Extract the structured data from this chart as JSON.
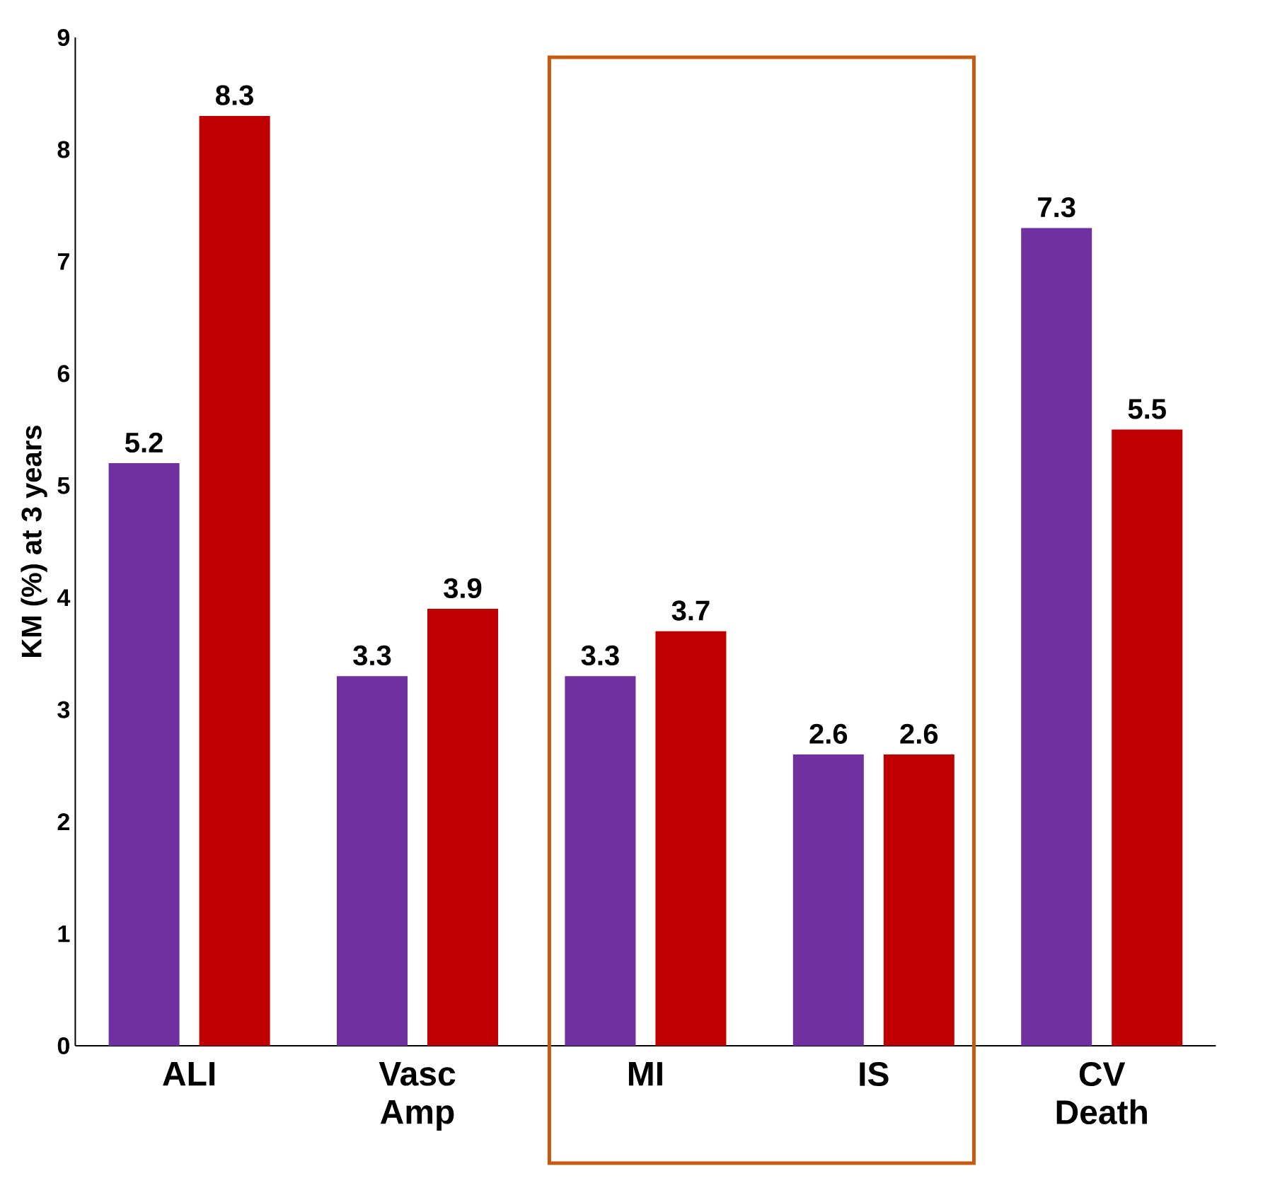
{
  "chart_data": {
    "type": "bar",
    "ylabel": "KM (%) at 3 years",
    "categories": [
      "ALI",
      "Vasc Amp",
      "MI",
      "IS",
      "CV Death"
    ],
    "series": [
      {
        "color": "#7030a0",
        "values": [
          5.2,
          3.3,
          3.3,
          2.6,
          7.3
        ]
      },
      {
        "color": "#c00000",
        "values": [
          8.3,
          3.9,
          3.7,
          2.6,
          5.5
        ]
      }
    ],
    "ylim": [
      0,
      9
    ],
    "yticks": [
      0,
      1,
      2,
      3,
      4,
      5,
      6,
      7,
      8,
      9
    ],
    "data_labels": true
  }
}
